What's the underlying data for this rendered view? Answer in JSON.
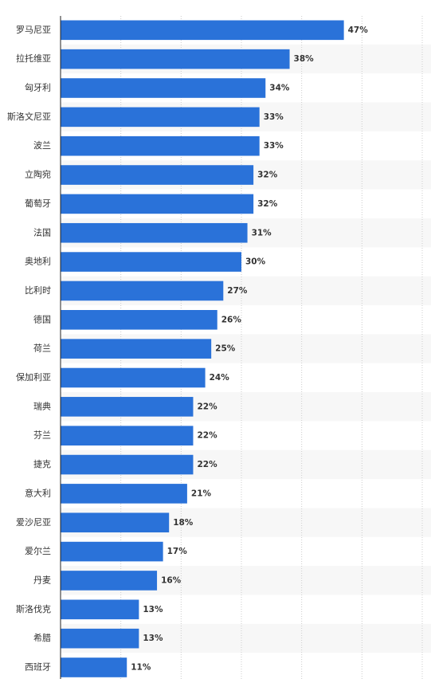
{
  "chart_data": {
    "type": "bar",
    "orientation": "horizontal",
    "categories": [
      "罗马尼亚",
      "拉托维亚",
      "匈牙利",
      "斯洛文尼亚",
      "波兰",
      "立陶宛",
      "葡萄牙",
      "法国",
      "奥地利",
      "比利时",
      "德国",
      "荷兰",
      "保加利亚",
      "瑞典",
      "芬兰",
      "捷克",
      "意大利",
      "爱沙尼亚",
      "爱尔兰",
      "丹麦",
      "斯洛伐克",
      "希腊",
      "西班牙"
    ],
    "values": [
      47,
      38,
      34,
      33,
      33,
      32,
      32,
      31,
      30,
      27,
      26,
      25,
      24,
      22,
      22,
      22,
      21,
      18,
      17,
      16,
      13,
      13,
      11
    ],
    "value_labels": [
      "47%",
      "38%",
      "34%",
      "33%",
      "33%",
      "32%",
      "32%",
      "31%",
      "30%",
      "27%",
      "26%",
      "25%",
      "24%",
      "22%",
      "22%",
      "22%",
      "21%",
      "18%",
      "17%",
      "16%",
      "13%",
      "13%",
      "11%"
    ],
    "xlim": [
      0,
      60
    ],
    "grid": true,
    "colors": {
      "bar": "#2a72d9",
      "stripe": "#f7f7f7",
      "grid": "#cccccc",
      "axis": "#222222",
      "text": "#333333"
    }
  }
}
